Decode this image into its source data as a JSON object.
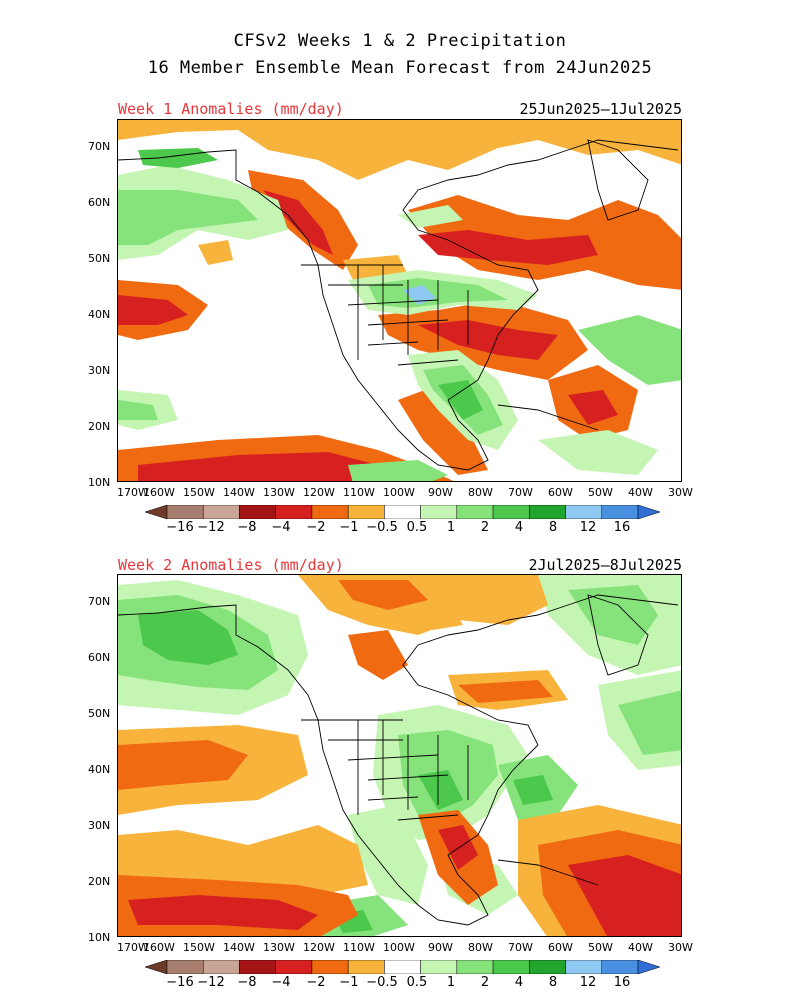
{
  "header": {
    "title_line1": "CFSv2 Weeks 1 & 2 Precipitation",
    "title_line2": "16 Member Ensemble Mean Forecast from 24Jun2025"
  },
  "panels": [
    {
      "label": "Week 1 Anomalies (mm/day)",
      "dates": "25Jun2025–1Jul2025"
    },
    {
      "label": "Week 2 Anomalies (mm/day)",
      "dates": "2Jul2025–8Jul2025"
    }
  ],
  "axes": {
    "lat_labels": [
      "70N",
      "60N",
      "50N",
      "40N",
      "30N",
      "20N",
      "10N"
    ],
    "lon_labels": [
      "170W",
      "160W",
      "150W",
      "140W",
      "130W",
      "120W",
      "110W",
      "100W",
      "90W",
      "80W",
      "70W",
      "60W",
      "50W",
      "40W",
      "30W"
    ]
  },
  "colorbar": {
    "labels": [
      "−16",
      "−12",
      "−8",
      "−4",
      "−2",
      "−1",
      "−0.5",
      "0.5",
      "1",
      "2",
      "4",
      "8",
      "12",
      "16"
    ],
    "colors": [
      "#6e3a2a",
      "#a87f6f",
      "#c9a596",
      "#a51414",
      "#d72020",
      "#f06a12",
      "#f8b33c",
      "#ffffff",
      "#c5f5b2",
      "#86e27a",
      "#4cc94c",
      "#22a52c",
      "#8fc8f0",
      "#4a90e0",
      "#2f6fd6"
    ]
  },
  "palette": {
    "title_red": "#e8363a",
    "dry_dark": "#d72020",
    "dry_mid": "#f06a12",
    "dry_light": "#f8b33c",
    "wet_light": "#c5f5b2",
    "wet_mid": "#86e27a",
    "wet_dark": "#4cc94c",
    "wet_darker": "#22a52c",
    "blue": "#8fc8f0"
  }
}
